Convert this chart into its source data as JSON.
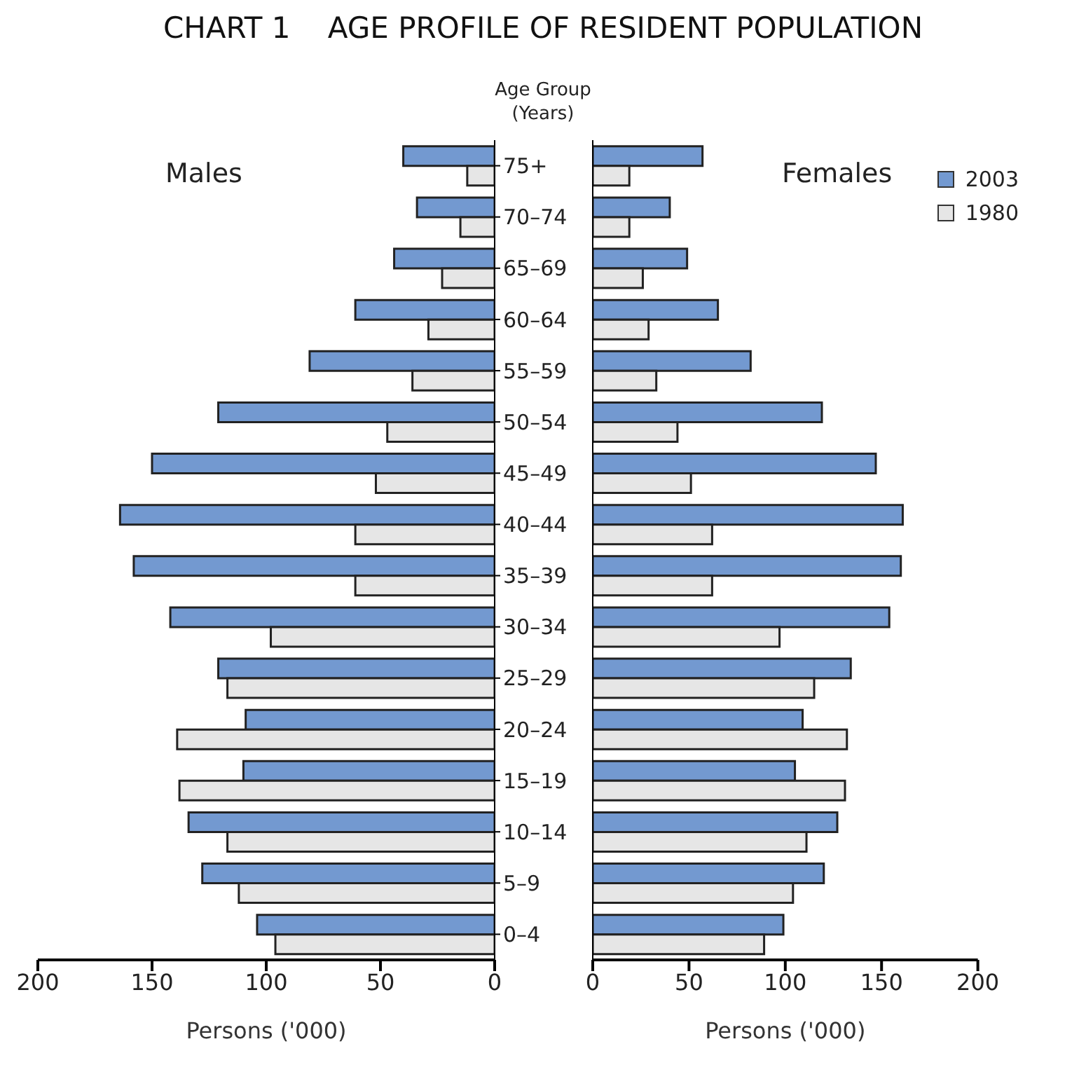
{
  "chart_data": [
    {
      "type": "bar",
      "orientation": "horizontal",
      "title": "CHART 1    AGE PROFILE OF RESIDENT POPULATION",
      "xlabel": "Persons ('000)",
      "annotations": [
        "Males"
      ],
      "categories": [
        "75+",
        "70–74",
        "65–69",
        "60–64",
        "55–59",
        "50–54",
        "45–49",
        "40–44",
        "35–39",
        "30–34",
        "25–29",
        "20–24",
        "15–19",
        "10–14",
        "5–9",
        "0–4"
      ],
      "series": [
        {
          "color": "#7399d0",
          "values": [
            40,
            34,
            44,
            61,
            81,
            121,
            150,
            164,
            158,
            142,
            121,
            109,
            110,
            134,
            128,
            104
          ]
        },
        {
          "color": "#e6e6e6",
          "values": [
            12,
            15,
            23,
            29,
            36,
            47,
            52,
            61,
            61,
            98,
            117,
            139,
            138,
            117,
            112,
            96
          ]
        }
      ],
      "xlim": [
        200,
        0
      ],
      "xticks": [
        200,
        150,
        100,
        50,
        0
      ],
      "ylabel": "Age Group (Years)",
      "legend": false,
      "grid": false
    },
    {
      "type": "bar",
      "orientation": "horizontal",
      "xlabel": "Persons ('000)",
      "annotations": [
        "Females"
      ],
      "tick_labels": "x",
      "categories": [
        null,
        null,
        null,
        null,
        null,
        null,
        null,
        null,
        null,
        null,
        null,
        null,
        null,
        null,
        null,
        null
      ],
      "series": [
        {
          "name": "2003",
          "color": "#7399d0",
          "values": [
            57,
            40,
            49,
            65,
            82,
            119,
            147,
            161,
            160,
            154,
            134,
            109,
            105,
            127,
            120,
            99
          ]
        },
        {
          "name": "1980",
          "color": "#e6e6e6",
          "values": [
            19,
            19,
            26,
            29,
            33,
            44,
            51,
            62,
            62,
            97,
            115,
            132,
            131,
            111,
            104,
            89
          ]
        }
      ],
      "xlim": [
        0,
        200
      ],
      "xticks": [
        0,
        50,
        100,
        150,
        200
      ],
      "legend": "top right",
      "grid": false
    }
  ]
}
